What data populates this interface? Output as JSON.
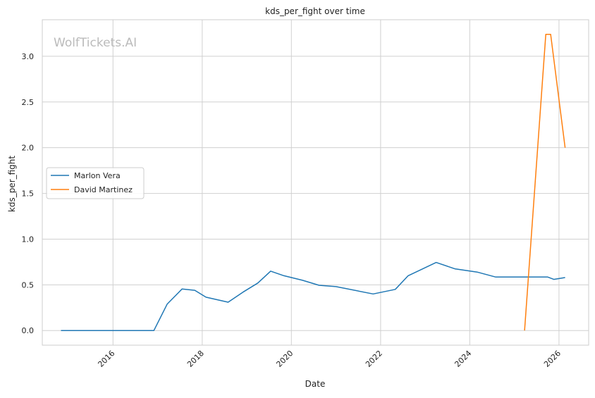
{
  "chart_data": {
    "type": "line",
    "title": "kds_per_fight over time",
    "xlabel": "Date",
    "ylabel": "kds_per_fight",
    "watermark": "WolfTickets.AI",
    "x_range": [
      "2014-06-01",
      "2026-09-01"
    ],
    "ylim": [
      -0.16,
      3.4
    ],
    "x_ticks": [
      "2016",
      "2018",
      "2020",
      "2022",
      "2024",
      "2026"
    ],
    "y_ticks": [
      "0.0",
      "0.5",
      "1.0",
      "1.5",
      "2.0",
      "2.5",
      "3.0"
    ],
    "grid": true,
    "legend_position": "center-left",
    "series": [
      {
        "name": "Marlon Vera",
        "color": "#1f77b4",
        "points": [
          [
            "2014-11-01",
            0.0
          ],
          [
            "2015-06-01",
            0.0
          ],
          [
            "2016-01-01",
            0.0
          ],
          [
            "2016-12-01",
            0.0
          ],
          [
            "2017-03-20",
            0.29
          ],
          [
            "2017-07-20",
            0.455
          ],
          [
            "2017-11-01",
            0.44
          ],
          [
            "2018-02-01",
            0.365
          ],
          [
            "2018-08-01",
            0.31
          ],
          [
            "2018-12-01",
            0.42
          ],
          [
            "2019-04-01",
            0.52
          ],
          [
            "2019-07-15",
            0.65
          ],
          [
            "2019-11-01",
            0.6
          ],
          [
            "2020-04-01",
            0.55
          ],
          [
            "2020-08-15",
            0.495
          ],
          [
            "2021-01-01",
            0.48
          ],
          [
            "2021-11-01",
            0.4
          ],
          [
            "2022-05-01",
            0.45
          ],
          [
            "2022-08-15",
            0.6
          ],
          [
            "2023-04-01",
            0.745
          ],
          [
            "2023-09-01",
            0.675
          ],
          [
            "2024-03-01",
            0.64
          ],
          [
            "2024-08-01",
            0.585
          ],
          [
            "2025-07-01",
            0.585
          ],
          [
            "2025-10-01",
            0.585
          ],
          [
            "2025-11-20",
            0.56
          ],
          [
            "2026-02-20",
            0.58
          ]
        ]
      },
      {
        "name": "David Martinez",
        "color": "#ff7f0e",
        "points": [
          [
            "2025-03-25",
            0.0
          ],
          [
            "2025-09-15",
            3.24
          ],
          [
            "2025-10-25",
            3.24
          ],
          [
            "2026-02-20",
            2.0
          ]
        ]
      }
    ]
  }
}
